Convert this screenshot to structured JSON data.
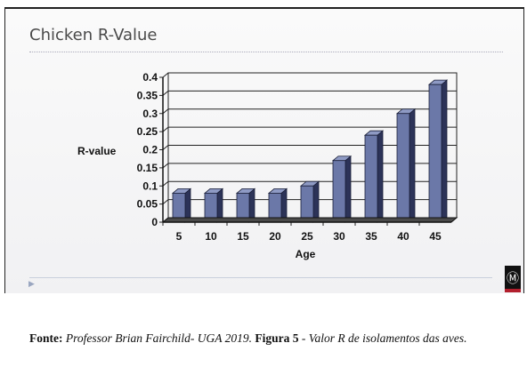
{
  "slide": {
    "title": "Chicken R-Value",
    "nav_arrow": "▶",
    "logo_glyph": "Ⓜ"
  },
  "chart_data": {
    "type": "bar",
    "title": "Chicken R-Value",
    "xlabel": "Age",
    "ylabel": "R-value",
    "categories": [
      "5",
      "10",
      "15",
      "20",
      "25",
      "30",
      "35",
      "40",
      "45"
    ],
    "values": [
      0.08,
      0.08,
      0.08,
      0.08,
      0.1,
      0.17,
      0.24,
      0.3,
      0.38
    ],
    "ylim": [
      0,
      0.4
    ],
    "yticks": [
      "0",
      "0.05",
      "0.1",
      "0.15",
      "0.2",
      "0.25",
      "0.3",
      "0.35",
      "0.4"
    ],
    "grid": true,
    "bar_color": "#6b78a8",
    "bar_side_color": "#2c3358",
    "bar_top_color": "#8e9ac4"
  },
  "caption": {
    "source_label": "Fonte:",
    "source_text": " Professor Brian Fairchild- UGA 2019. ",
    "figure_label": "Figura 5",
    "figure_text": " - Valor R de isolamentos das aves."
  }
}
